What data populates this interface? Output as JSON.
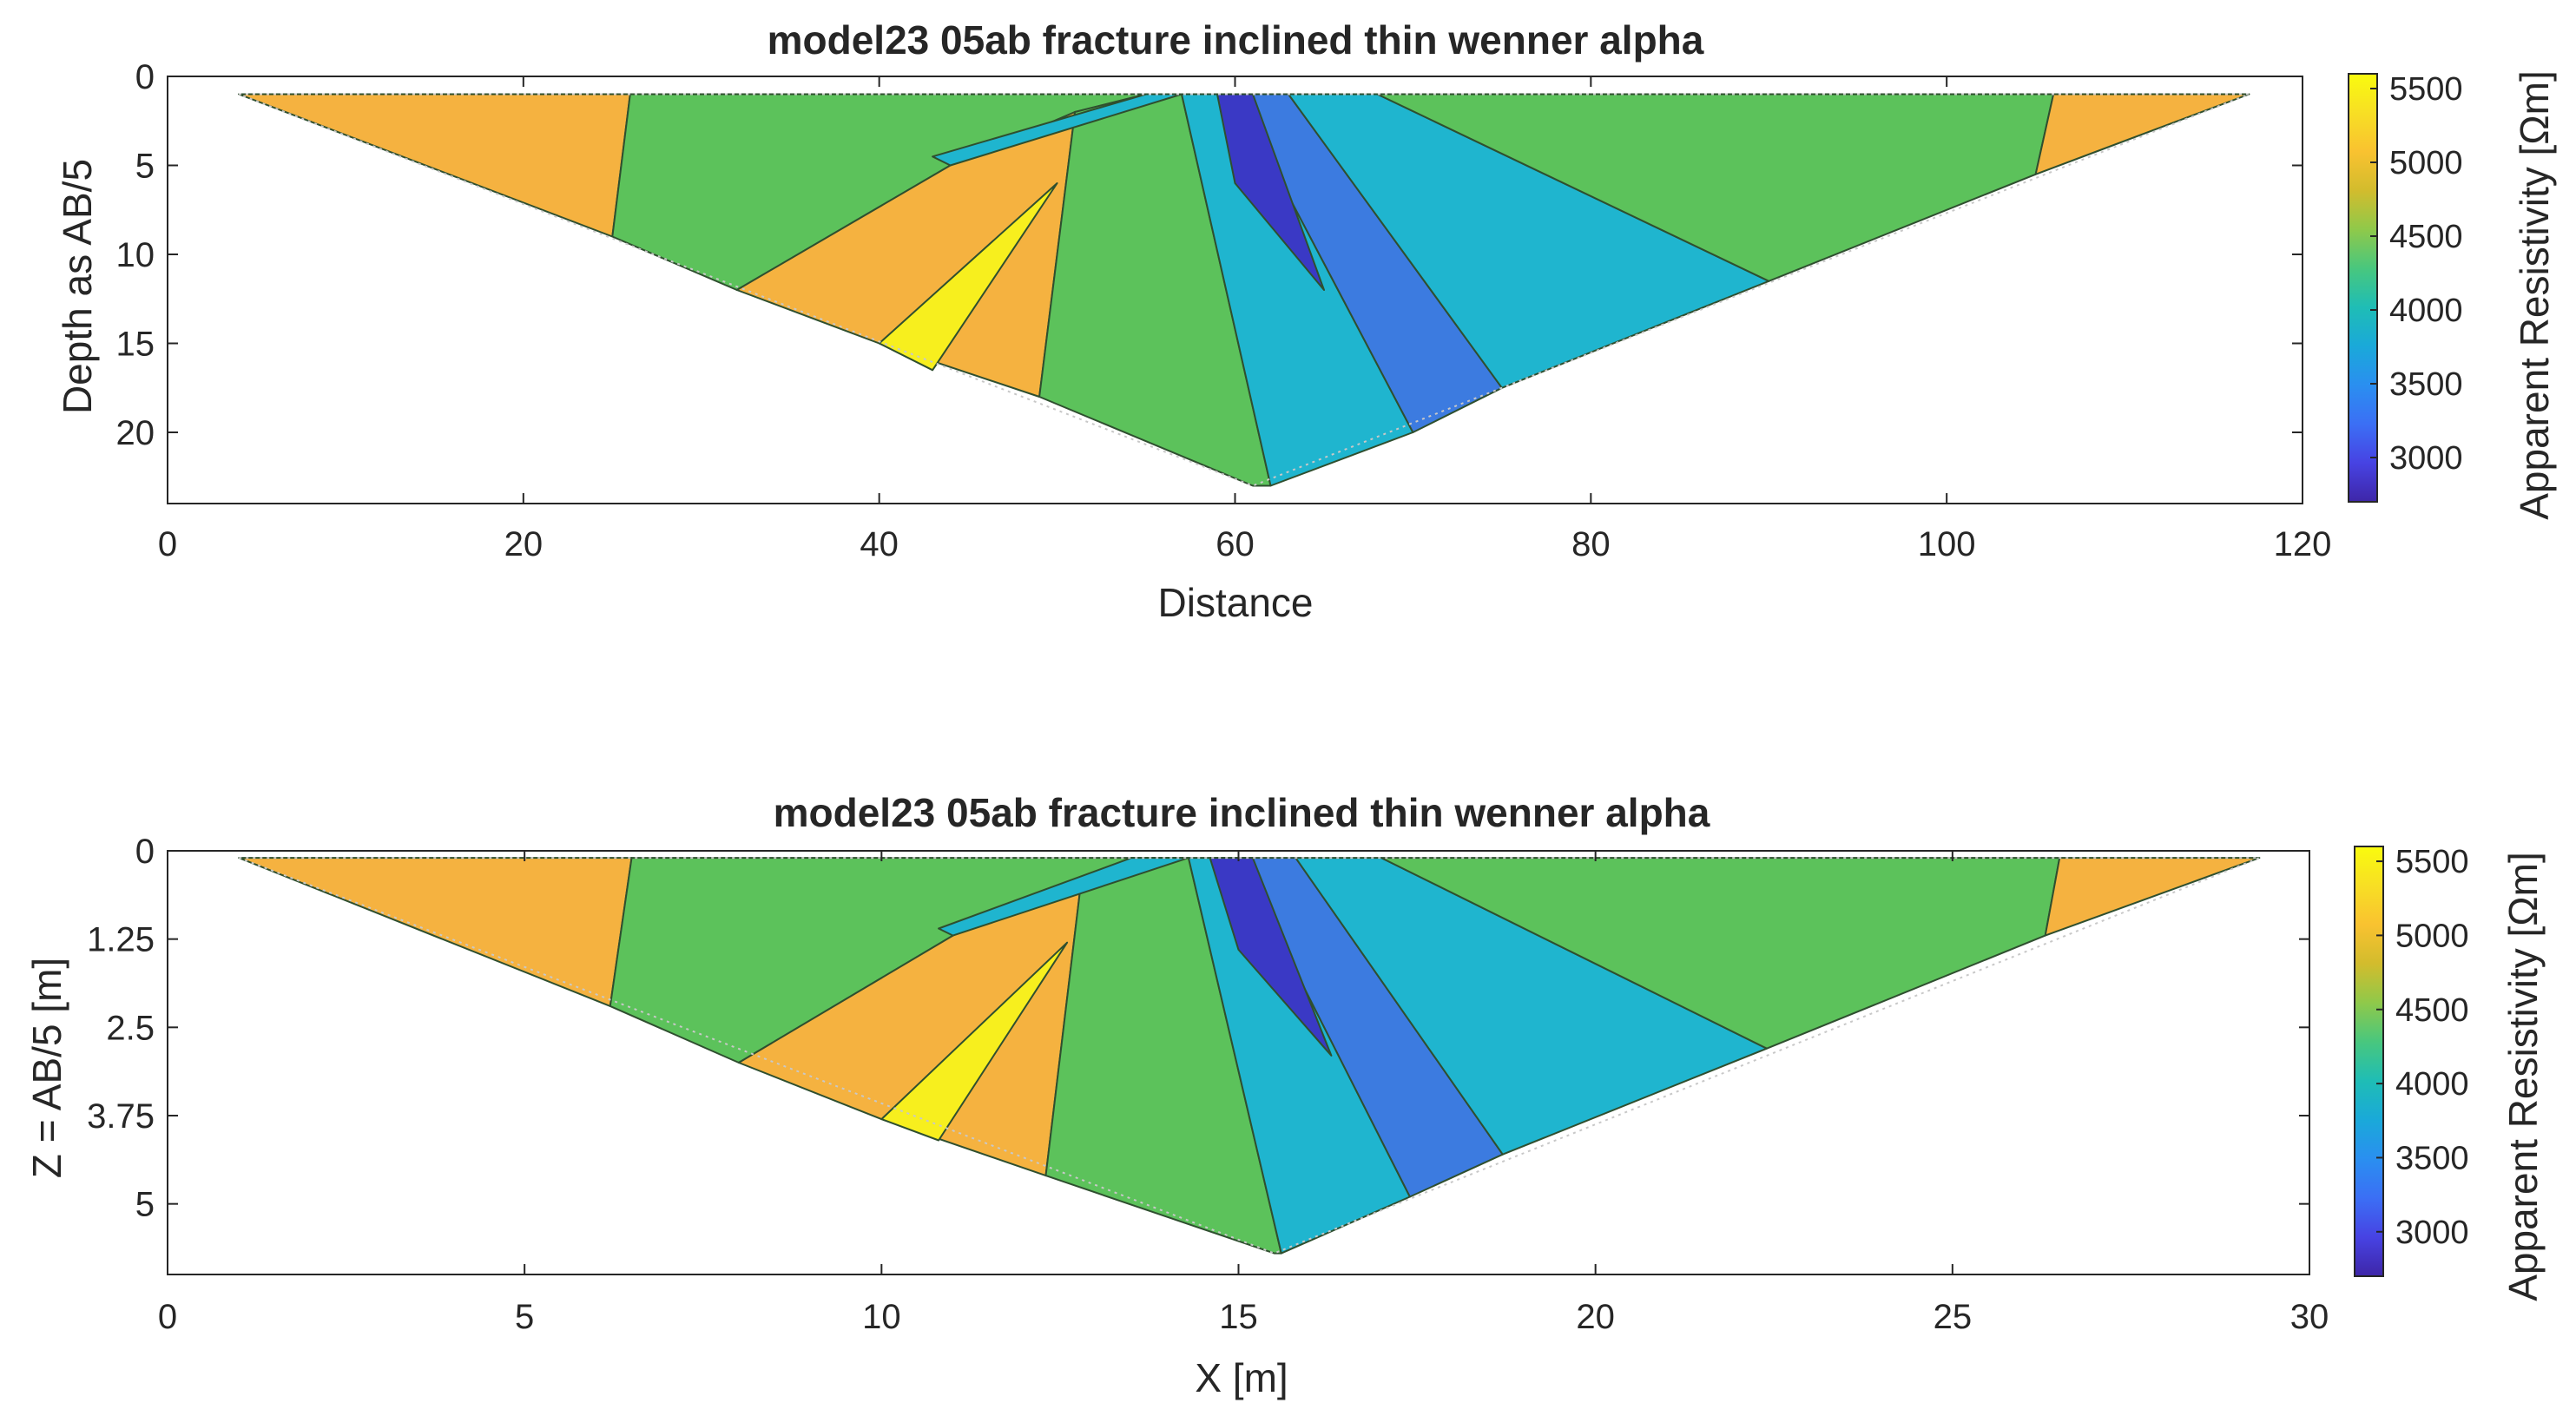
{
  "chart_data": [
    {
      "type": "heatmap",
      "title": "model23 05ab fracture inclined thin wenner alpha",
      "xlabel": "Distance",
      "ylabel": "Depth as AB/5",
      "xlim": [
        0,
        120
      ],
      "ylim": [
        0,
        24
      ],
      "y_reversed": true,
      "xticks": [
        0,
        20,
        40,
        60,
        80,
        100,
        120
      ],
      "yticks": [
        0,
        5,
        10,
        15,
        20
      ],
      "colorbar": {
        "label": "Apparent Resistivity [Ωm]",
        "ticks": [
          3000,
          3500,
          4000,
          4500,
          5000,
          5500
        ],
        "range": [
          2700,
          5600
        ]
      },
      "pseudosection_outline": [
        [
          4,
          1
        ],
        [
          117,
          1
        ],
        [
          61,
          23
        ]
      ],
      "regions": [
        {
          "level": 5000,
          "color": "#f5b240",
          "polygon": [
            [
              4,
              1
            ],
            [
              26,
              1
            ],
            [
              25,
              9
            ],
            [
              4,
              1
            ]
          ]
        },
        {
          "level": 4500,
          "color": "#5cc25b",
          "polygon": [
            [
              26,
              1
            ],
            [
              55,
              1
            ],
            [
              51,
              2
            ],
            [
              44,
              5
            ],
            [
              32,
              12
            ],
            [
              25,
              9
            ]
          ]
        },
        {
          "level": 5000,
          "color": "#f5b240",
          "polygon": [
            [
              32,
              12
            ],
            [
              44,
              5
            ],
            [
              51,
              2
            ],
            [
              49,
              18
            ],
            [
              40,
              15
            ]
          ]
        },
        {
          "level": 5500,
          "color": "#f7ef1e",
          "polygon": [
            [
              40,
              15
            ],
            [
              50,
              6
            ],
            [
              43,
              16.5
            ]
          ]
        },
        {
          "level": 4500,
          "color": "#5cc25b",
          "polygon": [
            [
              51,
              2
            ],
            [
              55,
              1
            ],
            [
              57,
              1
            ],
            [
              62,
              23
            ],
            [
              61,
              23
            ],
            [
              49,
              18
            ]
          ]
        },
        {
          "level": 4000,
          "color": "#1fb5cf",
          "polygon": [
            [
              57,
              1
            ],
            [
              60,
              1
            ],
            [
              70,
              20
            ],
            [
              62,
              23
            ]
          ]
        },
        {
          "level": 3500,
          "color": "#3c7be0",
          "polygon": [
            [
              60,
              1
            ],
            [
              63,
              1
            ],
            [
              75,
              17.5
            ],
            [
              70,
              20
            ]
          ]
        },
        {
          "level": 3000,
          "color": "#3a39c5",
          "polygon": [
            [
              59,
              1
            ],
            [
              61,
              1
            ],
            [
              65,
              12
            ],
            [
              60,
              6
            ]
          ]
        },
        {
          "level": 4000,
          "color": "#1fb5cf",
          "polygon": [
            [
              63,
              1
            ],
            [
              68,
              1
            ],
            [
              90,
              11.5
            ],
            [
              75,
              17.5
            ]
          ]
        },
        {
          "level": 4500,
          "color": "#5cc25b",
          "polygon": [
            [
              68,
              1
            ],
            [
              106,
              1
            ],
            [
              105,
              5.5
            ],
            [
              90,
              11.5
            ]
          ]
        },
        {
          "level": 5000,
          "color": "#f5b240",
          "polygon": [
            [
              106,
              1
            ],
            [
              117,
              1
            ],
            [
              105,
              5.5
            ]
          ]
        },
        {
          "level": 4000,
          "color": "#1fb5cf",
          "polygon": [
            [
              43,
              4.5
            ],
            [
              55,
              1
            ],
            [
              57,
              1
            ],
            [
              44,
              5
            ]
          ]
        }
      ]
    },
    {
      "type": "heatmap",
      "title": "model23 05ab fracture inclined thin wenner alpha",
      "xlabel": "X [m]",
      "ylabel": "Z = AB/5 [m]",
      "xlim": [
        0,
        30
      ],
      "ylim": [
        0,
        6
      ],
      "y_reversed": true,
      "xticks": [
        0,
        5,
        10,
        15,
        20,
        25,
        30
      ],
      "yticks": [
        0,
        1.25,
        2.5,
        3.75,
        5
      ],
      "colorbar": {
        "label": "Apparent Resistivity [Ωm]",
        "ticks": [
          3000,
          3500,
          4000,
          4500,
          5000,
          5500
        ],
        "range": [
          2700,
          5600
        ]
      },
      "pseudosection_outline": [
        [
          1,
          0.1
        ],
        [
          29.3,
          0.1
        ],
        [
          15.5,
          5.7
        ]
      ],
      "regions": [
        {
          "level": 5000,
          "color": "#f5b240",
          "polygon": [
            [
              1,
              0.1
            ],
            [
              6.5,
              0.1
            ],
            [
              6.2,
              2.2
            ],
            [
              1,
              0.1
            ]
          ]
        },
        {
          "level": 4500,
          "color": "#5cc25b",
          "polygon": [
            [
              6.5,
              0.1
            ],
            [
              13.5,
              0.1
            ],
            [
              12.8,
              0.4
            ],
            [
              11.0,
              1.2
            ],
            [
              8.0,
              3.0
            ],
            [
              6.2,
              2.2
            ]
          ]
        },
        {
          "level": 5000,
          "color": "#f5b240",
          "polygon": [
            [
              8.0,
              3.0
            ],
            [
              11.0,
              1.2
            ],
            [
              12.8,
              0.4
            ],
            [
              12.3,
              4.6
            ],
            [
              10.0,
              3.8
            ]
          ]
        },
        {
          "level": 5500,
          "color": "#f7ef1e",
          "polygon": [
            [
              10.0,
              3.8
            ],
            [
              12.6,
              1.3
            ],
            [
              10.8,
              4.1
            ]
          ]
        },
        {
          "level": 4500,
          "color": "#5cc25b",
          "polygon": [
            [
              12.8,
              0.4
            ],
            [
              13.5,
              0.1
            ],
            [
              14.3,
              0.1
            ],
            [
              15.6,
              5.7
            ],
            [
              15.5,
              5.7
            ],
            [
              12.3,
              4.6
            ]
          ]
        },
        {
          "level": 4000,
          "color": "#1fb5cf",
          "polygon": [
            [
              14.3,
              0.1
            ],
            [
              15.0,
              0.1
            ],
            [
              17.4,
              4.9
            ],
            [
              15.6,
              5.7
            ]
          ]
        },
        {
          "level": 3500,
          "color": "#3c7be0",
          "polygon": [
            [
              15.0,
              0.1
            ],
            [
              15.8,
              0.1
            ],
            [
              18.7,
              4.3
            ],
            [
              17.4,
              4.9
            ]
          ]
        },
        {
          "level": 3000,
          "color": "#3a39c5",
          "polygon": [
            [
              14.6,
              0.1
            ],
            [
              15.2,
              0.1
            ],
            [
              16.3,
              2.9
            ],
            [
              15.0,
              1.4
            ]
          ]
        },
        {
          "level": 4000,
          "color": "#1fb5cf",
          "polygon": [
            [
              15.8,
              0.1
            ],
            [
              17.0,
              0.1
            ],
            [
              22.4,
              2.8
            ],
            [
              18.7,
              4.3
            ]
          ]
        },
        {
          "level": 4500,
          "color": "#5cc25b",
          "polygon": [
            [
              17.0,
              0.1
            ],
            [
              26.5,
              0.1
            ],
            [
              26.3,
              1.2
            ],
            [
              22.4,
              2.8
            ]
          ]
        },
        {
          "level": 5000,
          "color": "#f5b240",
          "polygon": [
            [
              26.5,
              0.1
            ],
            [
              29.3,
              0.1
            ],
            [
              26.3,
              1.2
            ]
          ]
        },
        {
          "level": 4000,
          "color": "#1fb5cf",
          "polygon": [
            [
              10.8,
              1.1
            ],
            [
              13.5,
              0.1
            ],
            [
              14.3,
              0.1
            ],
            [
              11.0,
              1.2
            ]
          ]
        }
      ]
    }
  ]
}
